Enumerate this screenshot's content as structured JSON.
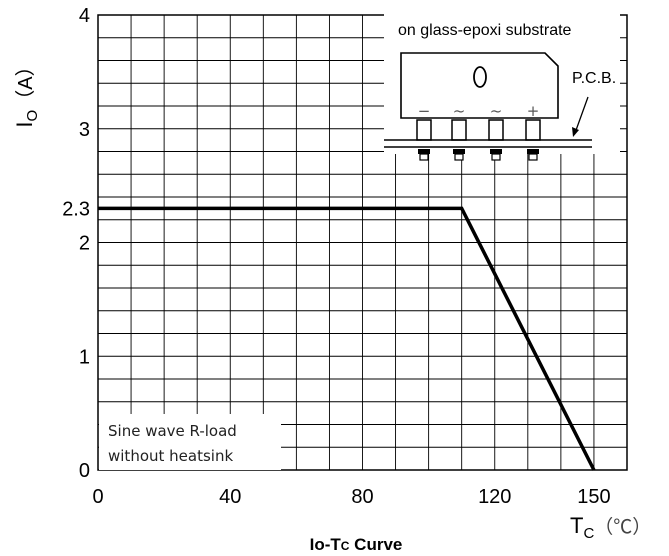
{
  "chart_data": {
    "type": "line",
    "title": "Io-Tc Curve",
    "title_parts": {
      "main": "Io-T",
      "sub": "C",
      "tail": " Curve"
    },
    "xlabel": {
      "main": "T",
      "sub": "C",
      "unit": "（℃）"
    },
    "ylabel": {
      "main": "I",
      "sub": "O",
      "unit": "（A）"
    },
    "xlim": [
      0,
      160
    ],
    "ylim": [
      0,
      4
    ],
    "x_ticks": [
      0,
      40,
      80,
      120,
      150
    ],
    "x_tick_labels": [
      "0",
      "40",
      "80",
      "120",
      "150"
    ],
    "y_ticks": [
      0,
      1,
      2,
      2.3,
      3,
      4
    ],
    "y_tick_labels": [
      "0",
      "1",
      "2",
      "2.3",
      "3",
      "4"
    ],
    "grid": true,
    "series": [
      {
        "x": [
          0,
          110,
          150
        ],
        "values": [
          2.3,
          2.3,
          0
        ]
      }
    ],
    "annotations": {
      "substrate": "on glass-epoxi substrate",
      "pcb": "P.C.B.",
      "package_marks": [
        "−",
        "~",
        "~",
        "+"
      ],
      "conditions": [
        "Sine wave R-load",
        "without heatsink"
      ]
    }
  }
}
